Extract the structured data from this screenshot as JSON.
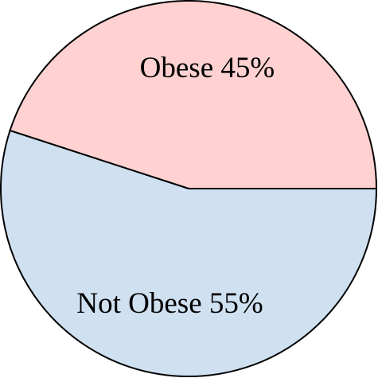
{
  "chart_data": {
    "type": "pie",
    "categories": [
      "Obese",
      "Not Obese"
    ],
    "values": [
      45,
      55
    ],
    "value_labels": [
      "45%",
      "55%"
    ],
    "colors": [
      "#ffd1d1",
      "#cfe0f1"
    ]
  }
}
